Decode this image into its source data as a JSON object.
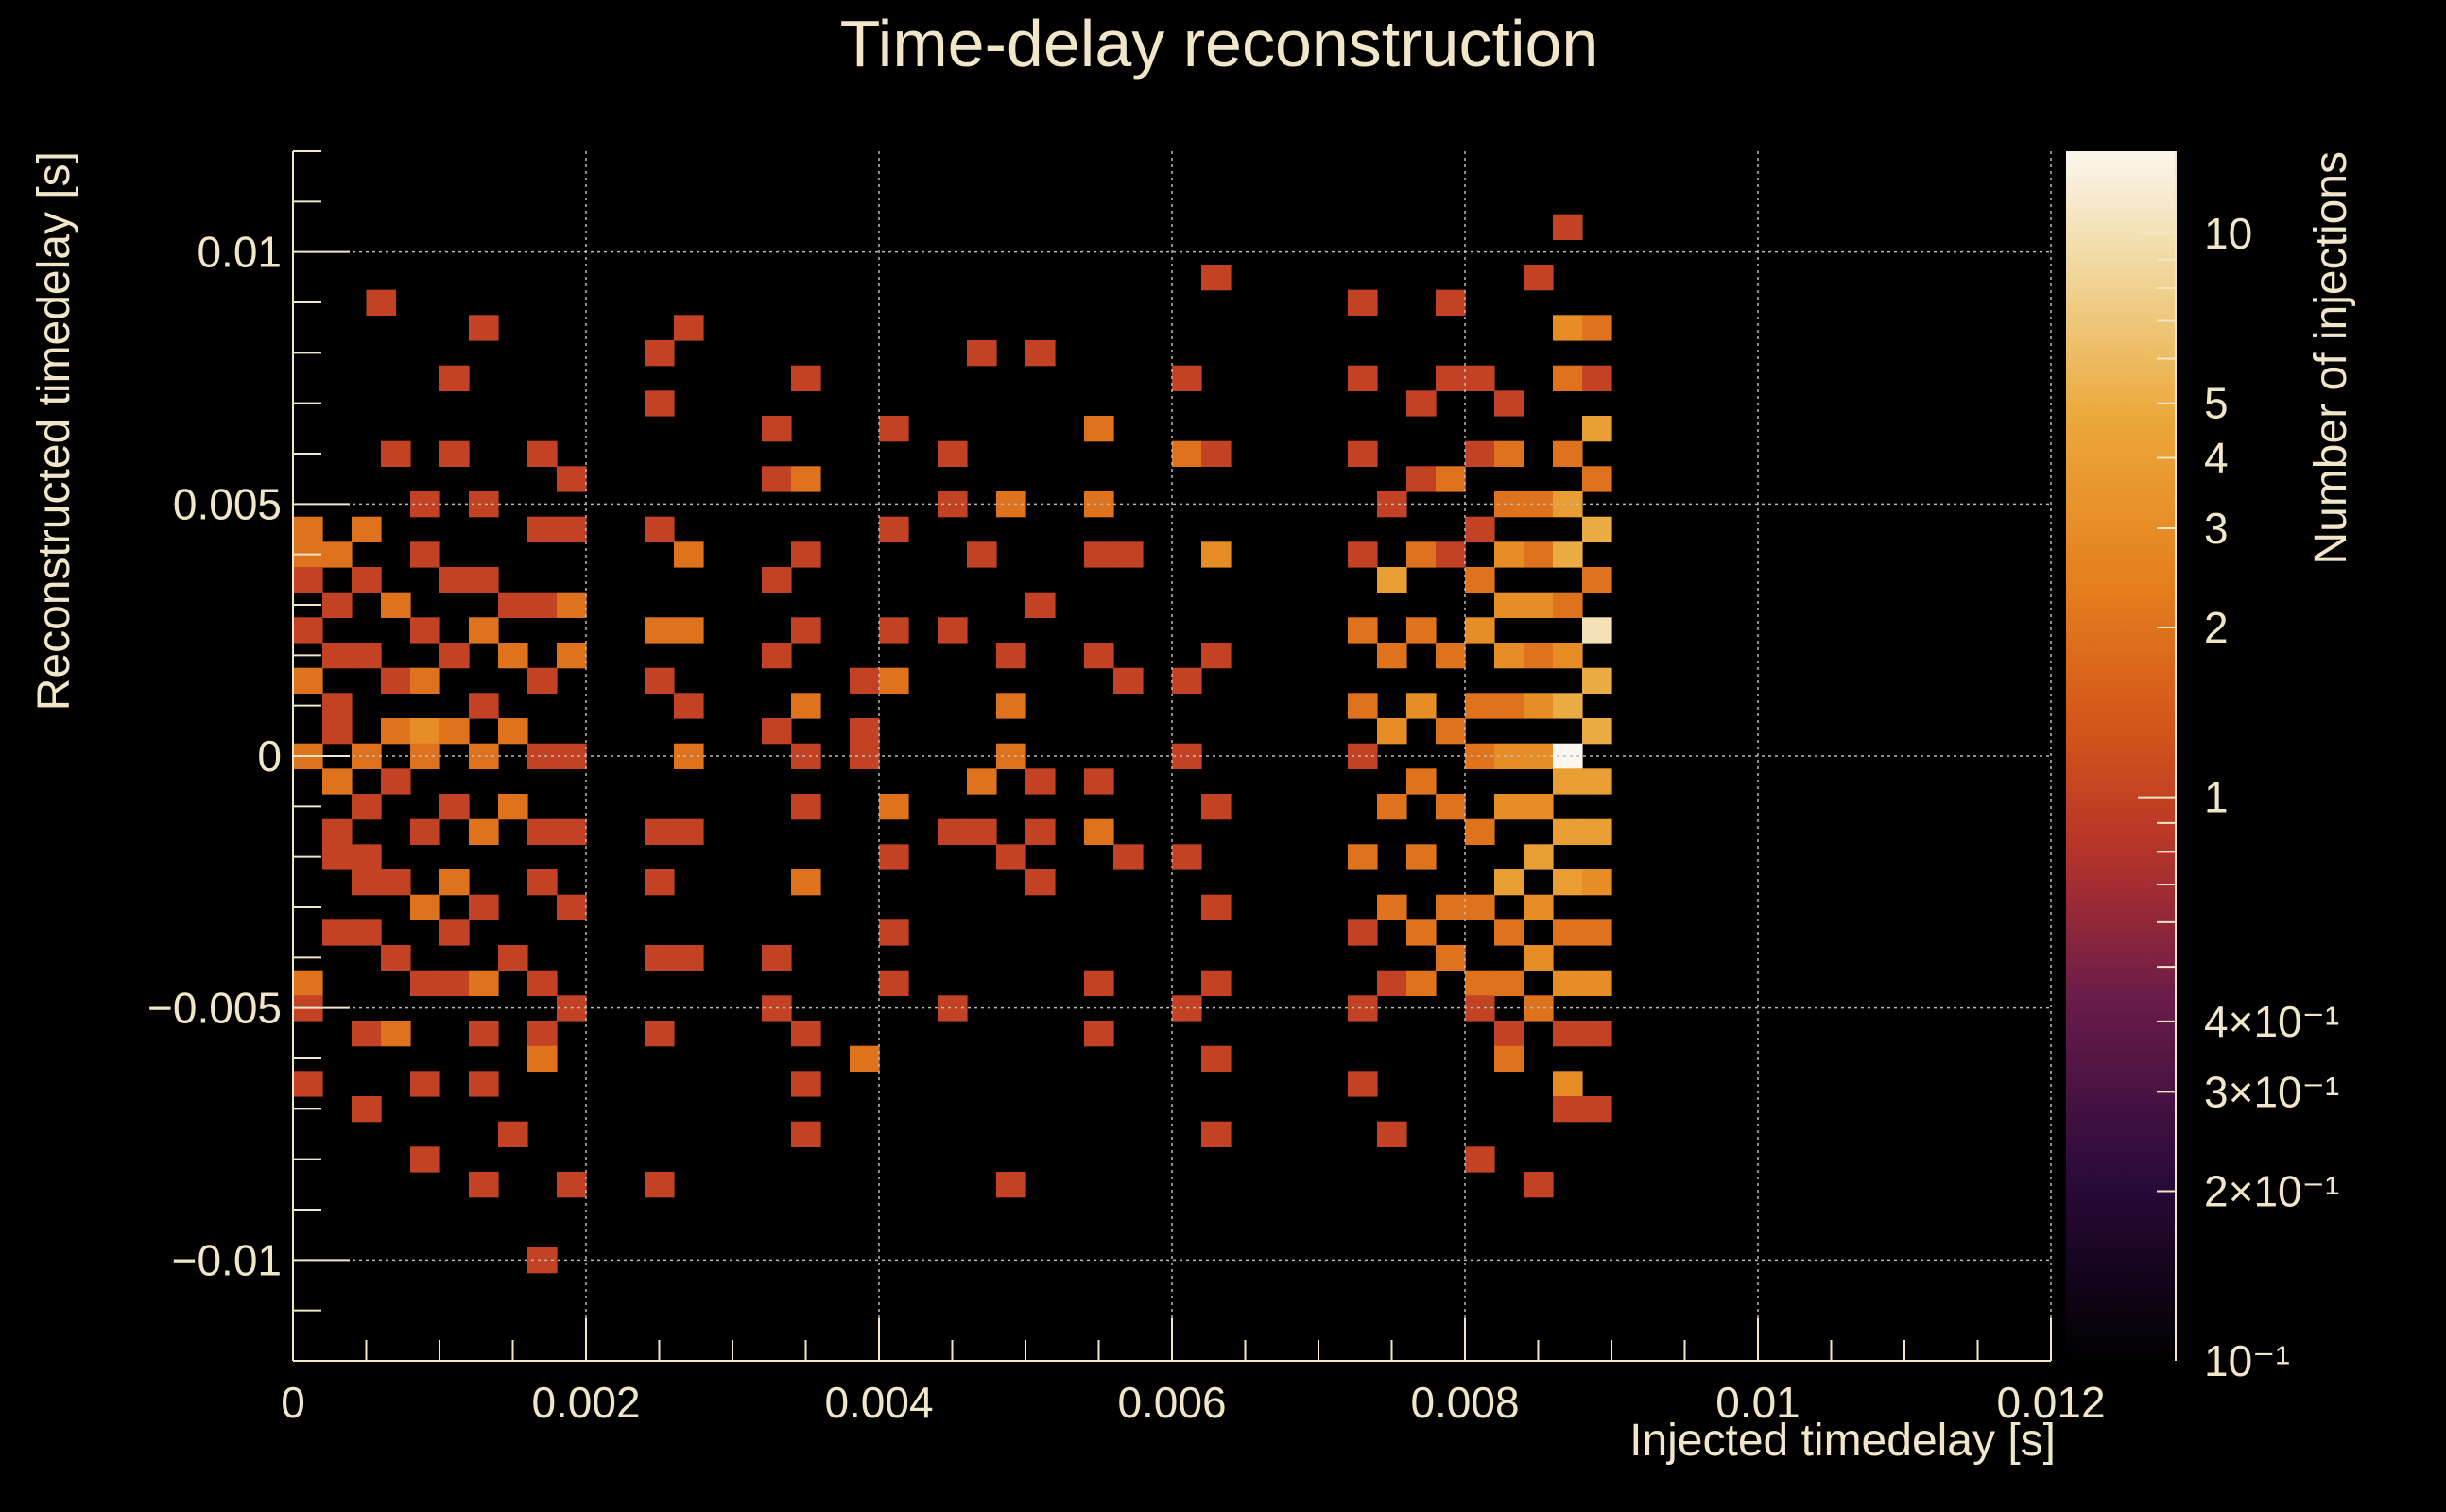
{
  "chart_data": {
    "type": "heatmap",
    "title": "Time-delay reconstruction",
    "xlabel": "Injected timedelay [s]",
    "ylabel": "Reconstructed timedelay [s]",
    "zlabel": "Number of injections",
    "xlim": [
      0,
      0.012
    ],
    "ylim": [
      -0.012,
      0.012
    ],
    "zlim": [
      0.1,
      14
    ],
    "z_scale": "log",
    "grid": true,
    "colormap": [
      "#000000",
      "#2a0a3a",
      "#6a1c4a",
      "#b4332a",
      "#d4541a",
      "#e5821e",
      "#eba83a",
      "#f0d69a",
      "#fbf7ee"
    ],
    "x_ticks": [
      "0",
      "0.002",
      "0.004",
      "0.006",
      "0.008",
      "0.01",
      "0.012"
    ],
    "y_ticks": [
      "0.01",
      "0.005",
      "0",
      "−0.005",
      "−0.01"
    ],
    "z_ticks": [
      "10",
      "5",
      "4",
      "3",
      "2",
      "1",
      "4×10⁻¹",
      "3×10⁻¹",
      "2×10⁻¹",
      "10⁻¹"
    ],
    "bin_width": {
      "x": 0.0002,
      "y": 0.0005
    },
    "cells": [
      [
        0.0001,
        0.0045,
        2
      ],
      [
        0.0001,
        0.004,
        2
      ],
      [
        0.0001,
        0.0035,
        1
      ],
      [
        0.0001,
        0.0025,
        1
      ],
      [
        0.0001,
        0.0015,
        2
      ],
      [
        0.0001,
        0.0,
        2
      ],
      [
        0.0001,
        -0.0045,
        2
      ],
      [
        0.0001,
        -0.005,
        1
      ],
      [
        0.0001,
        -0.0065,
        1
      ],
      [
        0.0003,
        0.004,
        2
      ],
      [
        0.0003,
        0.003,
        1
      ],
      [
        0.0003,
        0.002,
        1
      ],
      [
        0.0003,
        0.001,
        1
      ],
      [
        0.0003,
        0.0005,
        1
      ],
      [
        0.0003,
        -0.0005,
        2
      ],
      [
        0.0003,
        -0.0015,
        1
      ],
      [
        0.0003,
        -0.002,
        1
      ],
      [
        0.0003,
        -0.0035,
        1
      ],
      [
        0.0005,
        0.0045,
        2
      ],
      [
        0.0005,
        0.0035,
        1
      ],
      [
        0.0005,
        0.002,
        1
      ],
      [
        0.0005,
        0.0,
        2
      ],
      [
        0.0005,
        -0.001,
        1
      ],
      [
        0.0005,
        -0.002,
        1
      ],
      [
        0.0005,
        -0.0025,
        1
      ],
      [
        0.0005,
        -0.0035,
        1
      ],
      [
        0.0005,
        -0.0055,
        1
      ],
      [
        0.0005,
        -0.007,
        1
      ],
      [
        0.0006,
        0.009,
        1
      ],
      [
        0.0007,
        0.006,
        1
      ],
      [
        0.0007,
        0.003,
        2
      ],
      [
        0.0007,
        0.0015,
        1
      ],
      [
        0.0007,
        0.0005,
        2
      ],
      [
        0.0007,
        -0.0005,
        1
      ],
      [
        0.0007,
        -0.0025,
        1
      ],
      [
        0.0007,
        -0.004,
        1
      ],
      [
        0.0007,
        -0.0055,
        2
      ],
      [
        0.0009,
        0.005,
        1
      ],
      [
        0.0009,
        0.004,
        1
      ],
      [
        0.0009,
        0.0025,
        1
      ],
      [
        0.0009,
        0.0015,
        2
      ],
      [
        0.0009,
        0.0005,
        3
      ],
      [
        0.0009,
        0.0,
        2
      ],
      [
        0.0009,
        -0.0015,
        1
      ],
      [
        0.0009,
        -0.003,
        2
      ],
      [
        0.0009,
        -0.0045,
        1
      ],
      [
        0.0009,
        -0.0065,
        1
      ],
      [
        0.0009,
        -0.008,
        1
      ],
      [
        0.0011,
        0.0075,
        1
      ],
      [
        0.0011,
        0.006,
        1
      ],
      [
        0.0011,
        0.0035,
        1
      ],
      [
        0.0011,
        0.002,
        1
      ],
      [
        0.0011,
        0.0005,
        2
      ],
      [
        0.0011,
        -0.001,
        1
      ],
      [
        0.0011,
        -0.0025,
        2
      ],
      [
        0.0011,
        -0.0035,
        1
      ],
      [
        0.0011,
        -0.0045,
        1
      ],
      [
        0.0013,
        0.0085,
        1
      ],
      [
        0.0013,
        0.005,
        1
      ],
      [
        0.0013,
        0.0035,
        1
      ],
      [
        0.0013,
        0.0025,
        2
      ],
      [
        0.0013,
        0.001,
        1
      ],
      [
        0.0013,
        0.0,
        2
      ],
      [
        0.0013,
        -0.0015,
        2
      ],
      [
        0.0013,
        -0.003,
        1
      ],
      [
        0.0013,
        -0.0045,
        2
      ],
      [
        0.0013,
        -0.0055,
        1
      ],
      [
        0.0013,
        -0.0065,
        1
      ],
      [
        0.0013,
        -0.0085,
        1
      ],
      [
        0.0015,
        0.003,
        1
      ],
      [
        0.0015,
        0.002,
        2
      ],
      [
        0.0015,
        0.0005,
        2
      ],
      [
        0.0015,
        -0.001,
        2
      ],
      [
        0.0015,
        -0.004,
        1
      ],
      [
        0.0015,
        -0.0075,
        1
      ],
      [
        0.0017,
        0.006,
        1
      ],
      [
        0.0017,
        0.0045,
        1
      ],
      [
        0.0017,
        0.003,
        1
      ],
      [
        0.0017,
        0.0015,
        1
      ],
      [
        0.0017,
        0.0,
        1
      ],
      [
        0.0017,
        -0.0015,
        1
      ],
      [
        0.0017,
        -0.0025,
        1
      ],
      [
        0.0017,
        -0.0045,
        1
      ],
      [
        0.0017,
        -0.0055,
        1
      ],
      [
        0.0017,
        -0.006,
        2
      ],
      [
        0.0017,
        -0.01,
        1
      ],
      [
        0.0019,
        0.0055,
        1
      ],
      [
        0.0019,
        0.0045,
        1
      ],
      [
        0.0019,
        0.003,
        2
      ],
      [
        0.0019,
        0.002,
        2
      ],
      [
        0.0019,
        0.0,
        1
      ],
      [
        0.0019,
        -0.0015,
        1
      ],
      [
        0.0019,
        -0.003,
        1
      ],
      [
        0.0019,
        -0.005,
        1
      ],
      [
        0.0019,
        -0.0085,
        1
      ],
      [
        0.0025,
        0.008,
        1
      ],
      [
        0.0025,
        0.007,
        1
      ],
      [
        0.0025,
        0.0045,
        1
      ],
      [
        0.0025,
        0.0025,
        2
      ],
      [
        0.0025,
        0.0015,
        1
      ],
      [
        0.0025,
        -0.0015,
        1
      ],
      [
        0.0025,
        -0.0025,
        1
      ],
      [
        0.0025,
        -0.004,
        1
      ],
      [
        0.0025,
        -0.0055,
        1
      ],
      [
        0.0025,
        -0.0085,
        1
      ],
      [
        0.0027,
        0.0085,
        1
      ],
      [
        0.0027,
        0.004,
        2
      ],
      [
        0.0027,
        0.0025,
        2
      ],
      [
        0.0027,
        0.001,
        1
      ],
      [
        0.0027,
        0.0,
        2
      ],
      [
        0.0027,
        -0.0015,
        1
      ],
      [
        0.0027,
        -0.004,
        1
      ],
      [
        0.0033,
        0.0065,
        1
      ],
      [
        0.0033,
        0.0055,
        1
      ],
      [
        0.0033,
        0.0035,
        1
      ],
      [
        0.0033,
        0.002,
        1
      ],
      [
        0.0033,
        0.0005,
        1
      ],
      [
        0.0033,
        -0.004,
        1
      ],
      [
        0.0033,
        -0.005,
        1
      ],
      [
        0.0035,
        0.0075,
        1
      ],
      [
        0.0035,
        0.0055,
        2
      ],
      [
        0.0035,
        0.004,
        1
      ],
      [
        0.0035,
        0.0025,
        1
      ],
      [
        0.0035,
        0.001,
        2
      ],
      [
        0.0035,
        0.0,
        1
      ],
      [
        0.0035,
        -0.001,
        1
      ],
      [
        0.0035,
        -0.0025,
        2
      ],
      [
        0.0035,
        -0.0055,
        1
      ],
      [
        0.0035,
        -0.0065,
        1
      ],
      [
        0.0035,
        -0.0075,
        1
      ],
      [
        0.0039,
        0.0015,
        1
      ],
      [
        0.0039,
        0.0005,
        1
      ],
      [
        0.0039,
        0.0,
        1
      ],
      [
        0.0039,
        -0.006,
        2
      ],
      [
        0.0041,
        0.0065,
        1
      ],
      [
        0.0041,
        0.0045,
        1
      ],
      [
        0.0041,
        0.0025,
        1
      ],
      [
        0.0041,
        0.0015,
        2
      ],
      [
        0.0041,
        -0.001,
        2
      ],
      [
        0.0041,
        -0.002,
        1
      ],
      [
        0.0041,
        -0.0035,
        1
      ],
      [
        0.0041,
        -0.0045,
        1
      ],
      [
        0.0045,
        0.006,
        1
      ],
      [
        0.0045,
        0.005,
        1
      ],
      [
        0.0045,
        0.0025,
        1
      ],
      [
        0.0045,
        -0.0015,
        1
      ],
      [
        0.0045,
        -0.005,
        1
      ],
      [
        0.0047,
        0.008,
        1
      ],
      [
        0.0047,
        0.004,
        1
      ],
      [
        0.0047,
        -0.0005,
        2
      ],
      [
        0.0047,
        -0.0015,
        1
      ],
      [
        0.0049,
        0.005,
        2
      ],
      [
        0.0049,
        0.002,
        1
      ],
      [
        0.0049,
        0.001,
        2
      ],
      [
        0.0049,
        0.0,
        2
      ],
      [
        0.0049,
        -0.002,
        1
      ],
      [
        0.0049,
        -0.0085,
        1
      ],
      [
        0.0051,
        0.008,
        1
      ],
      [
        0.0051,
        0.003,
        1
      ],
      [
        0.0051,
        -0.0005,
        1
      ],
      [
        0.0051,
        -0.0015,
        1
      ],
      [
        0.0051,
        -0.0025,
        1
      ],
      [
        0.0055,
        0.0065,
        2
      ],
      [
        0.0055,
        0.005,
        2
      ],
      [
        0.0055,
        0.004,
        1
      ],
      [
        0.0055,
        0.002,
        1
      ],
      [
        0.0055,
        -0.0005,
        1
      ],
      [
        0.0055,
        -0.0015,
        2
      ],
      [
        0.0055,
        -0.0045,
        1
      ],
      [
        0.0055,
        -0.0055,
        1
      ],
      [
        0.0057,
        0.004,
        1
      ],
      [
        0.0057,
        0.0015,
        1
      ],
      [
        0.0057,
        -0.002,
        1
      ],
      [
        0.0061,
        0.0075,
        1
      ],
      [
        0.0061,
        0.006,
        2
      ],
      [
        0.0061,
        0.0015,
        1
      ],
      [
        0.0061,
        0.0,
        1
      ],
      [
        0.0061,
        -0.002,
        1
      ],
      [
        0.0061,
        -0.005,
        1
      ],
      [
        0.0063,
        0.0095,
        1
      ],
      [
        0.0063,
        0.006,
        1
      ],
      [
        0.0063,
        0.004,
        3
      ],
      [
        0.0063,
        0.002,
        1
      ],
      [
        0.0063,
        -0.001,
        1
      ],
      [
        0.0063,
        -0.003,
        1
      ],
      [
        0.0063,
        -0.0045,
        1
      ],
      [
        0.0063,
        -0.006,
        1
      ],
      [
        0.0063,
        -0.0075,
        1
      ],
      [
        0.0073,
        0.009,
        1
      ],
      [
        0.0073,
        0.0075,
        1
      ],
      [
        0.0073,
        0.006,
        1
      ],
      [
        0.0073,
        0.004,
        1
      ],
      [
        0.0073,
        0.0025,
        2
      ],
      [
        0.0073,
        0.001,
        2
      ],
      [
        0.0073,
        0.0,
        1
      ],
      [
        0.0073,
        -0.002,
        2
      ],
      [
        0.0073,
        -0.0035,
        1
      ],
      [
        0.0073,
        -0.005,
        1
      ],
      [
        0.0073,
        -0.0065,
        1
      ],
      [
        0.0075,
        0.005,
        1
      ],
      [
        0.0075,
        0.0035,
        4
      ],
      [
        0.0075,
        0.002,
        2
      ],
      [
        0.0075,
        0.0005,
        3
      ],
      [
        0.0075,
        -0.001,
        2
      ],
      [
        0.0075,
        -0.003,
        2
      ],
      [
        0.0075,
        -0.0045,
        1
      ],
      [
        0.0075,
        -0.0075,
        1
      ],
      [
        0.0077,
        0.007,
        1
      ],
      [
        0.0077,
        0.0055,
        1
      ],
      [
        0.0077,
        0.004,
        2
      ],
      [
        0.0077,
        0.0025,
        2
      ],
      [
        0.0077,
        0.001,
        3
      ],
      [
        0.0077,
        -0.0005,
        2
      ],
      [
        0.0077,
        -0.002,
        2
      ],
      [
        0.0077,
        -0.0035,
        2
      ],
      [
        0.0077,
        -0.0045,
        2
      ],
      [
        0.0079,
        0.009,
        1
      ],
      [
        0.0079,
        0.0075,
        1
      ],
      [
        0.0079,
        0.0055,
        2
      ],
      [
        0.0079,
        0.004,
        1
      ],
      [
        0.0079,
        0.002,
        2
      ],
      [
        0.0079,
        0.0005,
        2
      ],
      [
        0.0079,
        -0.001,
        2
      ],
      [
        0.0079,
        -0.003,
        2
      ],
      [
        0.0079,
        -0.004,
        2
      ],
      [
        0.0081,
        0.0075,
        1
      ],
      [
        0.0081,
        0.006,
        1
      ],
      [
        0.0081,
        0.0045,
        1
      ],
      [
        0.0081,
        0.0035,
        2
      ],
      [
        0.0081,
        0.0025,
        3
      ],
      [
        0.0081,
        0.001,
        2
      ],
      [
        0.0081,
        0.0,
        2
      ],
      [
        0.0081,
        -0.0015,
        2
      ],
      [
        0.0081,
        -0.003,
        2
      ],
      [
        0.0081,
        -0.0045,
        2
      ],
      [
        0.0081,
        -0.005,
        1
      ],
      [
        0.0081,
        -0.008,
        1
      ],
      [
        0.0083,
        0.007,
        1
      ],
      [
        0.0083,
        0.006,
        2
      ],
      [
        0.0083,
        0.005,
        2
      ],
      [
        0.0083,
        0.004,
        3
      ],
      [
        0.0083,
        0.003,
        3
      ],
      [
        0.0083,
        0.002,
        3
      ],
      [
        0.0083,
        0.001,
        2
      ],
      [
        0.0083,
        0.0,
        3
      ],
      [
        0.0083,
        -0.001,
        3
      ],
      [
        0.0083,
        -0.0025,
        4
      ],
      [
        0.0083,
        -0.0035,
        2
      ],
      [
        0.0083,
        -0.0045,
        2
      ],
      [
        0.0083,
        -0.0055,
        1
      ],
      [
        0.0083,
        -0.006,
        2
      ],
      [
        0.0085,
        0.0095,
        1
      ],
      [
        0.0085,
        0.005,
        2
      ],
      [
        0.0085,
        0.004,
        2
      ],
      [
        0.0085,
        0.003,
        3
      ],
      [
        0.0085,
        0.002,
        2
      ],
      [
        0.0085,
        0.001,
        3
      ],
      [
        0.0085,
        0.0,
        3
      ],
      [
        0.0085,
        -0.001,
        3
      ],
      [
        0.0085,
        -0.002,
        4
      ],
      [
        0.0085,
        -0.003,
        3
      ],
      [
        0.0085,
        -0.004,
        3
      ],
      [
        0.0085,
        -0.005,
        2
      ],
      [
        0.0085,
        -0.0085,
        1
      ],
      [
        0.0087,
        0.0105,
        1
      ],
      [
        0.0087,
        0.0085,
        3
      ],
      [
        0.0087,
        0.0075,
        2
      ],
      [
        0.0087,
        0.006,
        2
      ],
      [
        0.0087,
        0.005,
        4
      ],
      [
        0.0087,
        0.004,
        5
      ],
      [
        0.0087,
        0.003,
        2
      ],
      [
        0.0087,
        0.002,
        3
      ],
      [
        0.0087,
        0.001,
        5
      ],
      [
        0.0087,
        0.0,
        14
      ],
      [
        0.0087,
        -0.0005,
        4
      ],
      [
        0.0087,
        -0.0015,
        4
      ],
      [
        0.0087,
        -0.0025,
        4
      ],
      [
        0.0087,
        -0.0035,
        2
      ],
      [
        0.0087,
        -0.0045,
        3
      ],
      [
        0.0087,
        -0.0055,
        1
      ],
      [
        0.0087,
        -0.0065,
        3
      ],
      [
        0.0087,
        -0.007,
        1
      ],
      [
        0.0089,
        0.0085,
        2
      ],
      [
        0.0089,
        0.0075,
        1
      ],
      [
        0.0089,
        0.0065,
        4
      ],
      [
        0.0089,
        0.0055,
        2
      ],
      [
        0.0089,
        0.0045,
        5
      ],
      [
        0.0089,
        0.0035,
        2
      ],
      [
        0.0089,
        0.0025,
        10
      ],
      [
        0.0089,
        0.0015,
        5
      ],
      [
        0.0089,
        0.0005,
        5
      ],
      [
        0.0089,
        -0.0005,
        4
      ],
      [
        0.0089,
        -0.0015,
        4
      ],
      [
        0.0089,
        -0.0025,
        3
      ],
      [
        0.0089,
        -0.0035,
        2
      ],
      [
        0.0089,
        -0.0045,
        3
      ],
      [
        0.0089,
        -0.0055,
        1
      ],
      [
        0.0089,
        -0.007,
        1
      ]
    ]
  }
}
